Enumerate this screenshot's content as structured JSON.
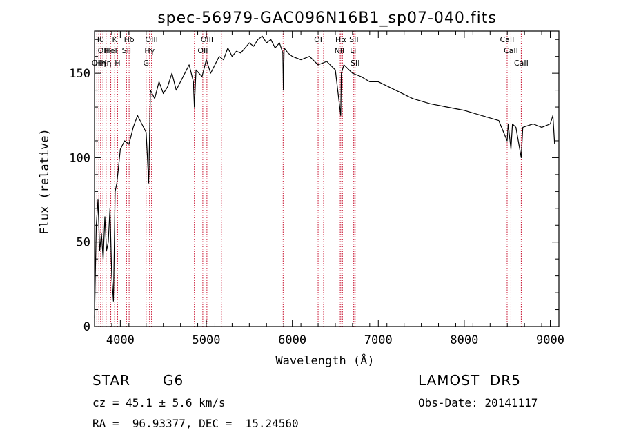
{
  "chart_data": {
    "type": "line",
    "title": "spec-56979-GAC096N16B1_sp07-040.fits",
    "xlabel": "Wavelength (Å)",
    "ylabel": "Flux (relative)",
    "xlim": [
      3700,
      9100
    ],
    "ylim": [
      0,
      175
    ],
    "xticks": [
      "4000",
      "5000",
      "6000",
      "7000",
      "8000",
      "9000"
    ],
    "yticks": [
      "0",
      "50",
      "100",
      "150"
    ],
    "series": [
      {
        "x": [
          3700,
          3720,
          3740,
          3760,
          3780,
          3800,
          3820,
          3840,
          3860,
          3880,
          3900,
          3920,
          3940,
          3960,
          3980,
          4000,
          4050,
          4100,
          4150,
          4200,
          4250,
          4300,
          4330,
          4350,
          4400,
          4450,
          4500,
          4550,
          4600,
          4650,
          4700,
          4750,
          4800,
          4850,
          4861,
          4880,
          4950,
          5000,
          5050,
          5100,
          5150,
          5200,
          5250,
          5300,
          5350,
          5400,
          5450,
          5500,
          5550,
          5600,
          5650,
          5700,
          5750,
          5800,
          5850,
          5890,
          5896,
          5905,
          5950,
          6000,
          6100,
          6200,
          6300,
          6400,
          6500,
          6563,
          6570,
          6600,
          6700,
          6800,
          6900,
          7000,
          7200,
          7400,
          7600,
          7800,
          8000,
          8200,
          8400,
          8498,
          8510,
          8542,
          8560,
          8600,
          8662,
          8680,
          8800,
          8900,
          9000,
          9030,
          9050
        ],
        "y": [
          5,
          60,
          75,
          45,
          55,
          40,
          65,
          45,
          50,
          70,
          30,
          15,
          80,
          85,
          95,
          105,
          110,
          108,
          118,
          125,
          120,
          115,
          85,
          140,
          135,
          145,
          138,
          142,
          150,
          140,
          145,
          150,
          155,
          145,
          130,
          152,
          148,
          158,
          150,
          155,
          160,
          158,
          165,
          160,
          163,
          162,
          165,
          168,
          166,
          170,
          172,
          168,
          170,
          165,
          168,
          162,
          140,
          165,
          162,
          160,
          158,
          160,
          155,
          157,
          152,
          125,
          150,
          155,
          150,
          148,
          145,
          145,
          140,
          135,
          132,
          130,
          128,
          125,
          122,
          110,
          120,
          105,
          120,
          118,
          100,
          118,
          120,
          118,
          120,
          125,
          108
        ]
      }
    ],
    "lines": [
      {
        "x": 3727,
        "label": "OII",
        "row": 3
      },
      {
        "x": 3750,
        "label": "Hθ",
        "row": 1
      },
      {
        "x": 3771,
        "label": "Hη",
        "row": 3
      },
      {
        "x": 3798,
        "label": "OII",
        "row": 2
      },
      {
        "x": 3835,
        "label": "Hη",
        "row": 3
      },
      {
        "x": 3889,
        "label": "HeI",
        "row": 2
      },
      {
        "x": 3934,
        "label": "K",
        "row": 1
      },
      {
        "x": 3968,
        "label": "H",
        "row": 3
      },
      {
        "x": 4072,
        "label": "SII",
        "row": 2
      },
      {
        "x": 4102,
        "label": "Hδ",
        "row": 1
      },
      {
        "x": 4300,
        "label": "G",
        "row": 3
      },
      {
        "x": 4340,
        "label": "Hγ",
        "row": 2
      },
      {
        "x": 4363,
        "label": "OIII",
        "row": 1
      },
      {
        "x": 4861,
        "label": "",
        "row": 0
      },
      {
        "x": 4959,
        "label": "OII",
        "row": 2
      },
      {
        "x": 5007,
        "label": "OIII",
        "row": 1
      },
      {
        "x": 5175,
        "label": "",
        "row": 0
      },
      {
        "x": 5893,
        "label": "",
        "row": 0
      },
      {
        "x": 6300,
        "label": "OI",
        "row": 1
      },
      {
        "x": 6364,
        "label": "",
        "row": 0
      },
      {
        "x": 6548,
        "label": "NII",
        "row": 2
      },
      {
        "x": 6563,
        "label": "Hα",
        "row": 1
      },
      {
        "x": 6583,
        "label": "",
        "row": 0
      },
      {
        "x": 6707,
        "label": "Li",
        "row": 2
      },
      {
        "x": 6716,
        "label": "SII",
        "row": 1
      },
      {
        "x": 6731,
        "label": "SII",
        "row": 3
      },
      {
        "x": 8498,
        "label": "CaII",
        "row": 1
      },
      {
        "x": 8542,
        "label": "CaII",
        "row": 2
      },
      {
        "x": 8662,
        "label": "CaII",
        "row": 3
      }
    ]
  },
  "info": {
    "object_class": "STAR",
    "subclass": "G6",
    "survey": "LAMOST  DR5",
    "redshift": "cz = 45.1 ± 5.6 km/s",
    "obs_date": "Obs-Date: 20141117",
    "coords": "RA =  96.93377, DEC =  15.24560"
  },
  "colors": {
    "line_markers": "#c8102e",
    "spectrum": "#000000"
  }
}
